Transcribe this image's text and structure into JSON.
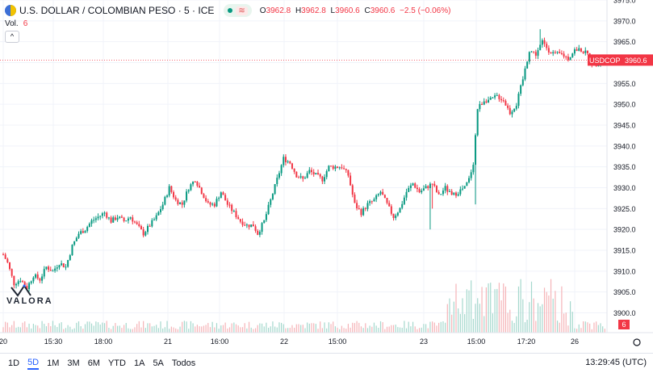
{
  "header": {
    "symbol_title": "U.S. DOLLAR / COLOMBIAN PESO · 5 · ICE",
    "ohlc": [
      {
        "k": "O",
        "v": "3962.8"
      },
      {
        "k": "H",
        "v": "3962.8"
      },
      {
        "k": "L",
        "v": "3960.6"
      },
      {
        "k": "C",
        "v": "3960.6"
      }
    ],
    "change": "−2.5 (−0.06%)",
    "wave_glyph": "≋",
    "volume_label": "Vol.",
    "volume_value": "6",
    "collapse_glyph": "^"
  },
  "watermark": {
    "text": "VALORA"
  },
  "price_tag": {
    "symbol": "USDCOP",
    "price": "3960.6"
  },
  "volume_tag": "6",
  "toolbar": {
    "ranges": [
      "1D",
      "5D",
      "1M",
      "3M",
      "6M",
      "YTD",
      "1A",
      "5A",
      "Todos"
    ],
    "active": "5D",
    "clock": "13:29:45 (UTC)"
  },
  "colors": {
    "up": "#089981",
    "down": "#f23645",
    "up_vol": "#a5d8cd",
    "down_vol": "#f5b4b8"
  },
  "chart_data": {
    "type": "candlestick",
    "y_range": [
      3897,
      3975
    ],
    "y_ticks": [
      3900,
      3905,
      3910,
      3915,
      3920,
      3925,
      3930,
      3935,
      3940,
      3945,
      3950,
      3955,
      3960,
      3965,
      3970,
      3975
    ],
    "y_tick_labels": [
      "3900.0",
      "3905.0",
      "3910.0",
      "3915.0",
      "3920.0",
      "3925.0",
      "3930.0",
      "3935.0",
      "3940.0",
      "3945.0",
      "3950.0",
      "3955.0",
      "3960.0",
      "3965.0",
      "3970.0",
      "3975.0"
    ],
    "x_labels": [
      "20",
      "15:30",
      "18:00",
      "21",
      "16:00",
      "22",
      "15:00",
      "23",
      "15:00",
      "17:20",
      "26"
    ],
    "last_price": 3960.6,
    "path": [
      [
        0,
        3914
      ],
      [
        2,
        3912
      ],
      [
        5,
        3907
      ],
      [
        8,
        3908
      ],
      [
        11,
        3906
      ],
      [
        14,
        3909
      ],
      [
        17,
        3908
      ],
      [
        20,
        3911
      ],
      [
        23,
        3910
      ],
      [
        26,
        3912
      ],
      [
        29,
        3911
      ],
      [
        32,
        3916
      ],
      [
        35,
        3919
      ],
      [
        38,
        3920
      ],
      [
        41,
        3922
      ],
      [
        44,
        3923
      ],
      [
        47,
        3924
      ],
      [
        50,
        3922
      ],
      [
        53,
        3923
      ],
      [
        56,
        3922
      ],
      [
        59,
        3923
      ],
      [
        62,
        3921
      ],
      [
        65,
        3919
      ],
      [
        68,
        3921
      ],
      [
        71,
        3923
      ],
      [
        74,
        3926
      ],
      [
        77,
        3930
      ],
      [
        80,
        3927
      ],
      [
        83,
        3926
      ],
      [
        86,
        3930
      ],
      [
        89,
        3932
      ],
      [
        92,
        3929
      ],
      [
        95,
        3926
      ],
      [
        98,
        3926
      ],
      [
        101,
        3929
      ],
      [
        104,
        3926
      ],
      [
        107,
        3924
      ],
      [
        110,
        3922
      ],
      [
        113,
        3921
      ],
      [
        116,
        3921
      ],
      [
        118,
        3919
      ],
      [
        121,
        3922
      ],
      [
        124,
        3927
      ],
      [
        127,
        3932
      ],
      [
        130,
        3937
      ],
      [
        133,
        3936
      ],
      [
        136,
        3933
      ],
      [
        139,
        3932
      ],
      [
        142,
        3934
      ],
      [
        145,
        3933
      ],
      [
        148,
        3932
      ],
      [
        151,
        3935
      ],
      [
        154,
        3935
      ],
      [
        157,
        3935
      ],
      [
        160,
        3933
      ],
      [
        163,
        3926
      ],
      [
        166,
        3924
      ],
      [
        169,
        3926
      ],
      [
        172,
        3927
      ],
      [
        175,
        3929
      ],
      [
        178,
        3926
      ],
      [
        181,
        3923
      ],
      [
        184,
        3925
      ],
      [
        187,
        3929
      ],
      [
        190,
        3931
      ],
      [
        193,
        3929
      ],
      [
        196,
        3930
      ],
      [
        199,
        3931
      ],
      [
        202,
        3928
      ],
      [
        205,
        3930
      ],
      [
        208,
        3928
      ],
      [
        211,
        3929
      ],
      [
        214,
        3930
      ],
      [
        216,
        3932
      ],
      [
        218,
        3936
      ],
      [
        220,
        3949
      ],
      [
        223,
        3951
      ],
      [
        226,
        3951
      ],
      [
        229,
        3952
      ],
      [
        232,
        3951
      ],
      [
        235,
        3948
      ],
      [
        238,
        3950
      ],
      [
        241,
        3956
      ],
      [
        244,
        3963
      ],
      [
        247,
        3962
      ],
      [
        250,
        3965
      ],
      [
        253,
        3963
      ],
      [
        256,
        3962
      ],
      [
        259,
        3962
      ],
      [
        262,
        3961
      ],
      [
        265,
        3963
      ],
      [
        268,
        3963
      ],
      [
        271,
        3962
      ],
      [
        274,
        3959
      ],
      [
        277,
        3961
      ],
      [
        278,
        3961
      ]
    ],
    "spikes": [
      {
        "i": 219,
        "value": 3926
      },
      {
        "i": 199,
        "value": 3925
      },
      {
        "i": 198,
        "value": 3920
      },
      {
        "i": 249,
        "value": 3968
      }
    ],
    "volume_peak": 16
  }
}
